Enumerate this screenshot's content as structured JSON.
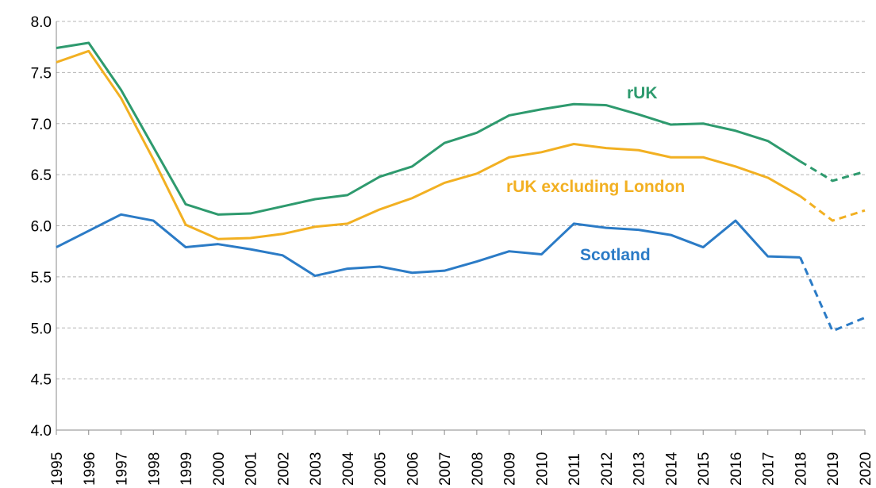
{
  "chart_data": {
    "type": "line",
    "title": "",
    "xlabel": "",
    "ylabel": "",
    "ylim": [
      4.0,
      8.0
    ],
    "y_ticks": [
      "4.0",
      "4.5",
      "5.0",
      "5.5",
      "6.0",
      "6.5",
      "7.0",
      "7.5",
      "8.0"
    ],
    "grid": "horizontal dashed",
    "legend": "inline labels",
    "x": [
      "1995",
      "1996",
      "1997",
      "1998",
      "1999",
      "2000",
      "2001",
      "2002",
      "2003",
      "2004",
      "2005",
      "2006",
      "2007",
      "2008",
      "2009",
      "2010",
      "2011",
      "2012",
      "2013",
      "2014",
      "2015",
      "2016",
      "2017",
      "2018",
      "2019",
      "2020"
    ],
    "forecast_from": "2018",
    "series": [
      {
        "name": "rUK",
        "color": "#2e9a6e",
        "values": [
          7.74,
          7.79,
          7.33,
          6.77,
          6.21,
          6.11,
          6.12,
          6.19,
          6.26,
          6.3,
          6.48,
          6.58,
          6.81,
          6.91,
          7.08,
          7.14,
          7.19,
          7.18,
          7.09,
          6.99,
          7.0,
          6.93,
          6.83,
          6.63,
          6.44,
          6.53
        ]
      },
      {
        "name": "rUK excluding London",
        "color": "#f2b022",
        "values": [
          7.6,
          7.71,
          7.25,
          6.65,
          6.01,
          5.87,
          5.88,
          5.92,
          5.99,
          6.02,
          6.16,
          6.27,
          6.42,
          6.51,
          6.67,
          6.72,
          6.8,
          6.76,
          6.74,
          6.67,
          6.67,
          6.58,
          6.47,
          6.29,
          6.05,
          6.15
        ]
      },
      {
        "name": "Scotland",
        "color": "#2b7bc6",
        "values": [
          5.79,
          5.95,
          6.11,
          6.05,
          5.79,
          5.82,
          5.77,
          5.71,
          5.51,
          5.58,
          5.6,
          5.54,
          5.56,
          5.65,
          5.75,
          5.72,
          6.02,
          5.98,
          5.96,
          5.91,
          5.79,
          6.05,
          5.7,
          5.69,
          4.97,
          5.1
        ]
      }
    ]
  }
}
